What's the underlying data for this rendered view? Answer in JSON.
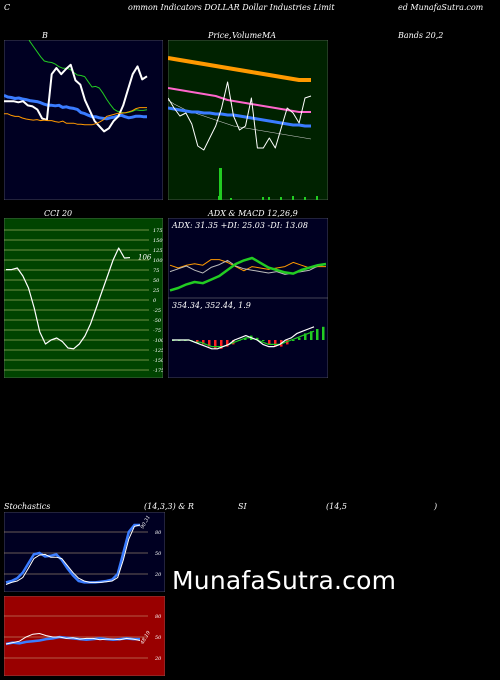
{
  "header": {
    "left": "C",
    "center": "ommon  Indicators DOLLAR Dollar Industries Limit",
    "right": "ed MunafaSutra.com"
  },
  "titles": {
    "bollinger": "B",
    "price_volume": "Price,",
    "volume_word": "Volume",
    "ma_word": "MA",
    "bands": "Bands 20,2",
    "cci": "CCI 20",
    "adx_macd": "ADX  & MACD 12,26,9",
    "stoch": "Stochastics",
    "stoch_params": "(14,3,3) & R",
    "si": "SI",
    "rsi_params": "(14,5",
    "rsi_close": ")"
  },
  "watermark": "MunafaSutra.com",
  "colors": {
    "bb_bg": "#000022",
    "green_bg": "#002200",
    "cci_bg": "#004400",
    "stoch_bg": "#000022",
    "rsi_bg": "#990000",
    "blue": "#3a7cff",
    "green": "#22cc22",
    "orange": "#ff9900",
    "pink": "#ff66cc",
    "white": "#ffffff"
  },
  "chart_data": [
    {
      "type": "line",
      "title": "B",
      "series": [
        {
          "values": [
            58,
            57,
            58,
            60,
            60,
            58,
            55,
            40,
            30,
            20,
            10,
            2,
            0,
            -1,
            -4,
            -9,
            -12,
            -12,
            -14,
            -20,
            -25,
            -26,
            -28,
            -38,
            -48,
            -47,
            -50,
            -60,
            -72,
            -82,
            -91,
            -95,
            -97,
            -98,
            -97,
            -95,
            -92,
            -93,
            -93,
            -92
          ]
        },
        {
          "values": [
            5,
            2,
            1,
            -1,
            0,
            -2,
            -3,
            -5,
            -6,
            -7,
            -9,
            -12,
            -14,
            -14,
            -15,
            -14,
            -18,
            -17,
            -19,
            -20,
            -22,
            -28,
            -30,
            -33,
            -36,
            -36,
            -38,
            -39,
            -40,
            -38,
            -37,
            -35,
            -33,
            -36,
            -38,
            -37,
            -35,
            -35,
            -36,
            -36
          ]
        },
        {
          "values": [
            -12,
            -12,
            -12,
            -14,
            -12,
            -20,
            -22,
            -28,
            -45,
            -48,
            40,
            52,
            40,
            50,
            58,
            28,
            20,
            -10,
            -30,
            -50,
            -60,
            -70,
            -64,
            -50,
            -41,
            -20,
            10,
            40,
            55,
            30,
            36
          ]
        },
        {
          "values": [
            -17,
            -17,
            -20,
            -22,
            -22,
            -25,
            -27,
            -28,
            -29,
            -28,
            -30,
            -29,
            -30,
            -30,
            -32,
            -33,
            -31,
            -35,
            -35,
            -35,
            -37,
            -37,
            -38,
            -38,
            -38,
            -36,
            -33,
            -29,
            -22,
            -20,
            -18,
            -16,
            -16,
            -15,
            -13,
            -11,
            -7,
            -5,
            -5,
            -5
          ]
        }
      ]
    },
    {
      "type": "line",
      "title": "Price, Volume MA",
      "series": [
        {
          "values": [
            62,
            61,
            60,
            59,
            58,
            57,
            56,
            55,
            54,
            53,
            52,
            51,
            50,
            49,
            48,
            47,
            46,
            45,
            44,
            43,
            42,
            41,
            40,
            40,
            40
          ]
        },
        {
          "values": [
            48,
            47,
            46,
            45,
            44,
            43,
            42,
            41,
            40,
            38,
            36,
            35,
            34,
            33,
            32,
            31,
            30,
            29,
            28,
            27,
            26,
            25,
            24,
            24,
            24
          ]
        },
        {
          "values": [
            12,
            11,
            10,
            9,
            8,
            8,
            7,
            7,
            6,
            6,
            5,
            5,
            4,
            3,
            2,
            1,
            0,
            -1,
            -2,
            -3,
            -4,
            -5,
            -5,
            -6,
            -6
          ]
        },
        {
          "values": [
            20,
            10,
            2,
            5,
            -6,
            -28,
            -32,
            -20,
            -8,
            10,
            36,
            2,
            -12,
            -8,
            20,
            -30,
            -30,
            -20,
            -30,
            -10,
            10,
            5,
            -5,
            20,
            22
          ]
        },
        {
          "values": [
            32,
            28,
            25,
            22,
            20,
            18,
            16,
            14,
            12,
            10,
            8,
            6,
            5,
            4,
            3,
            2,
            1,
            0,
            -1,
            -2,
            -3,
            -4,
            -5,
            -6,
            -7
          ]
        }
      ]
    },
    {
      "type": "line",
      "title": "CCI 20",
      "ylim": [
        -175,
        175
      ],
      "yticks": [
        175,
        150,
        125,
        100,
        75,
        50,
        25,
        0,
        -25,
        -50,
        -75,
        -100,
        -125,
        -150,
        -175
      ],
      "series": [
        {
          "values": [
            76,
            76,
            80,
            60,
            30,
            -20,
            -80,
            -110,
            -100,
            -95,
            -104,
            -120,
            -122,
            -110,
            -90,
            -60,
            -20,
            20,
            60,
            100,
            130,
            105,
            106
          ]
        }
      ],
      "last_label": "106"
    },
    {
      "type": "line",
      "title": "ADX & MACD 12,26,9",
      "adx_text": "ADX: 31.35 +DI: 25.03 -DI: 13.08",
      "series": [
        {
          "values": [
            26,
            28,
            30,
            27,
            25,
            29,
            31,
            34,
            30,
            28,
            27,
            26,
            25,
            26,
            24,
            25,
            26,
            27,
            30,
            31
          ]
        },
        {
          "values": [
            13,
            15,
            18,
            20,
            19,
            22,
            25,
            30,
            35,
            38,
            40,
            36,
            32,
            30,
            28,
            27,
            30,
            32,
            34,
            35
          ]
        },
        {
          "values": [
            22,
            20,
            22,
            23,
            22,
            26,
            26,
            24,
            21,
            18,
            21,
            20,
            19,
            20,
            21,
            24,
            22,
            20,
            21,
            21
          ]
        }
      ]
    },
    {
      "type": "line",
      "title": "MACD",
      "macd_text": "354.34,  352.44,  1.9",
      "series": [
        {
          "values": [
            0,
            0,
            0,
            0,
            -1,
            -2,
            -3,
            -4,
            -4,
            -3,
            -2,
            0,
            1,
            2,
            1,
            0,
            -2,
            -3,
            -3,
            -2,
            0,
            1,
            3,
            4,
            5,
            6
          ]
        },
        {
          "values": [
            0,
            0,
            0,
            0,
            -1,
            -1,
            -2,
            -3,
            -3,
            -3,
            -2,
            -1,
            0,
            1,
            1,
            0,
            -1,
            -2,
            -2,
            -2,
            -1,
            0,
            1,
            2,
            3,
            4
          ]
        }
      ]
    },
    {
      "type": "line",
      "title": "Stochastics (14,3,3)",
      "ylim": [
        0,
        100
      ],
      "yticks": [
        80,
        50,
        20
      ],
      "series": [
        {
          "values": [
            8,
            10,
            14,
            22,
            35,
            48,
            50,
            45,
            46,
            48,
            40,
            28,
            18,
            10,
            8,
            8,
            8,
            9,
            10,
            12,
            20,
            50,
            80,
            90,
            90
          ]
        },
        {
          "values": [
            5,
            8,
            10,
            15,
            28,
            42,
            47,
            48,
            44,
            44,
            42,
            32,
            22,
            14,
            10,
            8,
            8,
            8,
            9,
            10,
            15,
            40,
            70,
            88,
            90
          ]
        }
      ],
      "last_label": "90.31"
    },
    {
      "type": "line",
      "title": "RSI (14,5)",
      "ylim": [
        0,
        100
      ],
      "yticks": [
        80,
        50,
        20
      ],
      "series": [
        {
          "values": [
            40,
            42,
            41,
            43,
            44,
            45,
            47,
            48,
            50,
            49,
            48,
            47,
            46,
            47,
            48,
            47,
            46,
            47,
            48,
            47,
            47
          ]
        },
        {
          "values": [
            40,
            42,
            44,
            50,
            54,
            55,
            52,
            50,
            50,
            48,
            49,
            47,
            48,
            48,
            46,
            47,
            47,
            46,
            48,
            47,
            45
          ]
        }
      ],
      "last_label": "48.19"
    }
  ]
}
